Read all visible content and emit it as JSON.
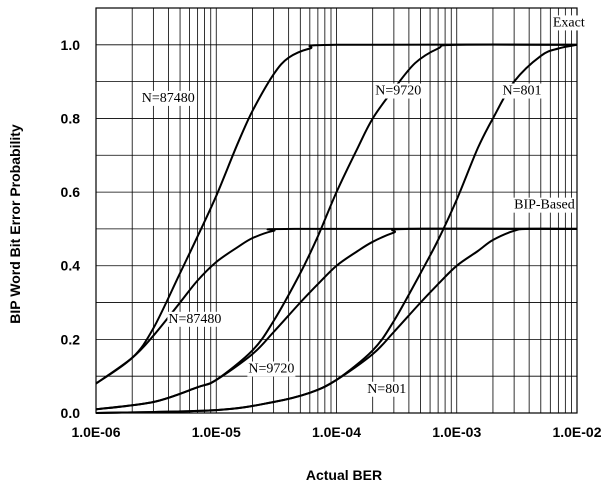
{
  "chart_data": {
    "type": "line",
    "xlabel": "Actual BER",
    "ylabel": "BIP Word  Bit Error  Probability",
    "xscale": "log",
    "xlim": [
      1e-06,
      0.01
    ],
    "ylim": [
      0,
      1.1
    ],
    "grid": true,
    "x_ticks": [
      "1.0E-06",
      "1.0E-05",
      "1.0E-04",
      "1.0E-03",
      "1.0E-02"
    ],
    "y_ticks": [
      "0.0",
      "0.2",
      "0.4",
      "0.6",
      "0.8",
      "1.0"
    ],
    "series": [
      {
        "name": "Exact N=87480",
        "group": "Exact",
        "points": [
          [
            1e-06,
            0.08
          ],
          [
            2e-06,
            0.15
          ],
          [
            3e-06,
            0.23
          ],
          [
            5e-06,
            0.38
          ],
          [
            7e-06,
            0.48
          ],
          [
            1e-05,
            0.59
          ],
          [
            1.5e-05,
            0.73
          ],
          [
            2e-05,
            0.82
          ],
          [
            3e-05,
            0.92
          ],
          [
            4e-05,
            0.965
          ],
          [
            6e-05,
            0.99
          ],
          [
            0.0001,
            1.0
          ],
          [
            0.01,
            1.0
          ]
        ]
      },
      {
        "name": "Exact N=9720",
        "group": "Exact",
        "points": [
          [
            1e-06,
            0.01
          ],
          [
            3e-06,
            0.03
          ],
          [
            7e-06,
            0.07
          ],
          [
            1e-05,
            0.09
          ],
          [
            2e-05,
            0.17
          ],
          [
            3e-05,
            0.25
          ],
          [
            5e-05,
            0.38
          ],
          [
            7e-05,
            0.48
          ],
          [
            0.0001,
            0.6
          ],
          [
            0.00015,
            0.72
          ],
          [
            0.0002,
            0.8
          ],
          [
            0.0003,
            0.88
          ],
          [
            0.00045,
            0.95
          ],
          [
            0.0007,
            0.99
          ],
          [
            0.001,
            1.0
          ],
          [
            0.01,
            1.0
          ]
        ]
      },
      {
        "name": "Exact N=801",
        "group": "Exact",
        "points": [
          [
            1e-06,
            0.0
          ],
          [
            1e-05,
            0.008
          ],
          [
            3e-05,
            0.03
          ],
          [
            6e-05,
            0.055
          ],
          [
            0.0001,
            0.09
          ],
          [
            0.0002,
            0.17
          ],
          [
            0.0003,
            0.25
          ],
          [
            0.0005,
            0.38
          ],
          [
            0.0007,
            0.47
          ],
          [
            0.001,
            0.58
          ],
          [
            0.0015,
            0.72
          ],
          [
            0.002,
            0.8
          ],
          [
            0.003,
            0.9
          ],
          [
            0.005,
            0.97
          ],
          [
            0.007,
            0.99
          ],
          [
            0.01,
            1.0
          ]
        ]
      },
      {
        "name": "BIP-Based N=87480",
        "group": "BIP-Based",
        "points": [
          [
            1e-06,
            0.08
          ],
          [
            2e-06,
            0.15
          ],
          [
            3e-06,
            0.21
          ],
          [
            5e-06,
            0.3
          ],
          [
            7e-06,
            0.36
          ],
          [
            1e-05,
            0.41
          ],
          [
            1.5e-05,
            0.45
          ],
          [
            2e-05,
            0.475
          ],
          [
            3e-05,
            0.495
          ],
          [
            4.5e-05,
            0.5
          ],
          [
            0.01,
            0.5
          ]
        ]
      },
      {
        "name": "BIP-Based N=9720",
        "group": "BIP-Based",
        "points": [
          [
            1e-06,
            0.01
          ],
          [
            3e-06,
            0.03
          ],
          [
            7e-06,
            0.07
          ],
          [
            1e-05,
            0.09
          ],
          [
            2e-05,
            0.16
          ],
          [
            3e-05,
            0.22
          ],
          [
            5e-05,
            0.3
          ],
          [
            7e-05,
            0.35
          ],
          [
            0.0001,
            0.4
          ],
          [
            0.00015,
            0.44
          ],
          [
            0.0002,
            0.465
          ],
          [
            0.0003,
            0.49
          ],
          [
            0.0004,
            0.5
          ],
          [
            0.01,
            0.5
          ]
        ]
      },
      {
        "name": "BIP-Based N=801",
        "group": "BIP-Based",
        "points": [
          [
            1e-06,
            0.0
          ],
          [
            1e-05,
            0.008
          ],
          [
            3e-05,
            0.03
          ],
          [
            6e-05,
            0.055
          ],
          [
            0.0001,
            0.09
          ],
          [
            0.0002,
            0.16
          ],
          [
            0.0003,
            0.22
          ],
          [
            0.0005,
            0.3
          ],
          [
            0.0007,
            0.35
          ],
          [
            0.001,
            0.4
          ],
          [
            0.0015,
            0.44
          ],
          [
            0.002,
            0.47
          ],
          [
            0.003,
            0.495
          ],
          [
            0.004,
            0.5
          ],
          [
            0.01,
            0.5
          ]
        ]
      }
    ],
    "annotations": [
      {
        "text": "Exact",
        "x": 0.0063,
        "y": 1.05
      },
      {
        "text": "N=87480",
        "x": 2.4e-06,
        "y": 0.845
      },
      {
        "text": "N=9720",
        "x": 0.00021,
        "y": 0.865
      },
      {
        "text": "N=801",
        "x": 0.0024,
        "y": 0.865
      },
      {
        "text": "BIP-Based",
        "x": 0.003,
        "y": 0.555
      },
      {
        "text": "N=87480",
        "x": 4e-06,
        "y": 0.245
      },
      {
        "text": "N=9720",
        "x": 1.85e-05,
        "y": 0.11
      },
      {
        "text": "N=801",
        "x": 0.00018,
        "y": 0.055
      }
    ]
  }
}
